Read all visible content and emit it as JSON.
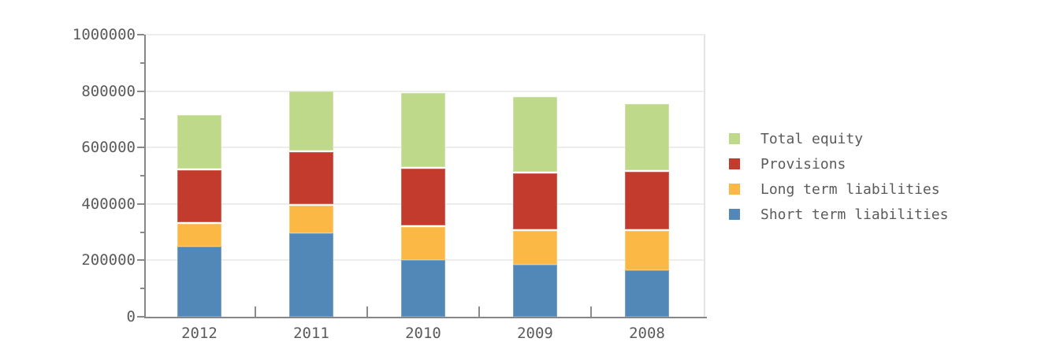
{
  "chart_data": {
    "type": "bar",
    "stacked": true,
    "orientation": "vertical",
    "title": "",
    "xlabel": "",
    "ylabel": "",
    "categories": [
      "2012",
      "2011",
      "2010",
      "2009",
      "2008"
    ],
    "series": [
      {
        "name": "Short term liabilities",
        "color": "#5188b8",
        "border": "#7aa3c8",
        "values": [
          250000,
          295000,
          200000,
          185000,
          165000
        ]
      },
      {
        "name": "Long term liabilities",
        "color": "#fcb845",
        "border": "#fdcb74",
        "values": [
          85000,
          105000,
          125000,
          125000,
          145000
        ]
      },
      {
        "name": "Provisions",
        "color": "#c23b2c",
        "border": "#d16455",
        "values": [
          190000,
          190000,
          205000,
          205000,
          210000
        ]
      },
      {
        "name": "Total equity",
        "color": "#bed98a",
        "border": "#d0e3a8",
        "values": [
          195000,
          215000,
          270000,
          270000,
          240000
        ]
      }
    ],
    "legend": [
      "Total equity",
      "Provisions",
      "Long term liabilities",
      "Short term liabilities"
    ],
    "legend_position": "right",
    "ylim": [
      0,
      1000000
    ],
    "y_major_step": 200000,
    "y_minor_step": 100000,
    "y_tick_labels": [
      "0",
      "200000",
      "400000",
      "600000",
      "800000",
      "1000000"
    ],
    "grid": true
  },
  "style_colors": {
    "axis": "#878787",
    "tick": "#8a8a8a",
    "gridline": "#ededed",
    "plot_border": "#e4e4e4",
    "text": "#5b5b5b"
  }
}
